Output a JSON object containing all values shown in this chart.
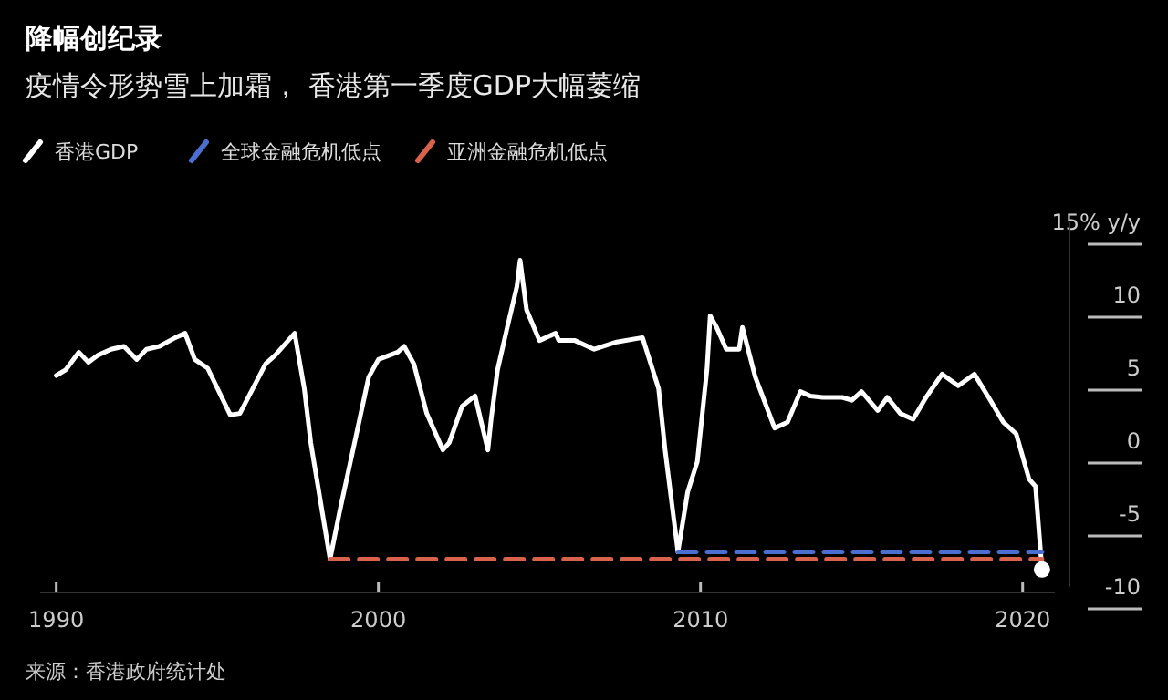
{
  "chart_data": {
    "type": "line",
    "title": "降幅创纪录",
    "subtitle": "疫情令形势雪上加霜， 香港第一季度GDP大幅萎缩",
    "annotations": [
      "来源：香港政府统计处"
    ],
    "xlim": [
      1989.5,
      2021
    ],
    "xticks": [
      1990,
      2000,
      2010,
      2020
    ],
    "ylim": [
      -10,
      15
    ],
    "yticks": [
      -10,
      -5,
      0,
      5,
      10,
      {
        "value": 15,
        "label": "15% y/y"
      }
    ],
    "legend": "top left",
    "grid": false,
    "line_style": "solid",
    "marker": "none",
    "series": [
      {
        "name": "香港GDP",
        "color": "#ffffff",
        "x": [
          1990.0,
          1990.3,
          1990.7,
          1991.0,
          1991.3,
          1991.7,
          1992.1,
          1992.5,
          1992.8,
          1993.2,
          1993.7,
          1994.0,
          1994.3,
          1994.7,
          1995.4,
          1995.7,
          1996.1,
          1996.5,
          1996.8,
          1997.2,
          1997.4,
          1997.7,
          1997.9,
          1998.5,
          1998.8,
          1999.3,
          1999.7,
          2000.0,
          2000.6,
          2000.8,
          2001.1,
          2001.5,
          2002.0,
          2002.2,
          2002.6,
          2003.0,
          2003.4,
          2003.5,
          2003.7,
          2004.0,
          2004.3,
          2004.4,
          2004.6,
          2005.0,
          2005.5,
          2005.6,
          2006.1,
          2006.7,
          2007.4,
          2008.2,
          2008.7,
          2008.9,
          2009.3,
          2009.6,
          2009.9,
          2010.2,
          2010.3,
          2010.5,
          2010.8,
          2011.2,
          2011.3,
          2011.7,
          2012.3,
          2012.7,
          2013.1,
          2013.4,
          2013.8,
          2014.4,
          2014.7,
          2015.0,
          2015.5,
          2015.8,
          2016.2,
          2016.6,
          2017.0,
          2017.5,
          2018.0,
          2018.5,
          2019.0,
          2019.4,
          2019.8,
          2020.2,
          2020.4,
          2020.6
        ],
        "values": [
          4.5,
          4.9,
          6.1,
          5.4,
          5.9,
          6.3,
          6.5,
          5.6,
          6.3,
          6.5,
          7.1,
          7.4,
          5.6,
          5.0,
          1.8,
          1.9,
          3.6,
          5.3,
          5.9,
          6.9,
          7.4,
          3.6,
          -0.1,
          -8.1,
          -4.8,
          0.3,
          4.4,
          5.6,
          6.1,
          6.5,
          5.3,
          1.9,
          -0.6,
          -0.1,
          2.4,
          3.1,
          -0.6,
          1.5,
          4.9,
          7.8,
          10.6,
          12.4,
          9.0,
          6.9,
          7.4,
          6.9,
          6.9,
          6.3,
          6.8,
          7.1,
          3.6,
          -0.6,
          -7.6,
          -3.5,
          -1.4,
          4.9,
          8.6,
          7.8,
          6.3,
          6.3,
          7.8,
          4.4,
          0.9,
          1.3,
          3.4,
          3.1,
          3.0,
          3.0,
          2.8,
          3.4,
          2.1,
          3.0,
          1.9,
          1.5,
          3.0,
          4.6,
          3.8,
          4.6,
          2.8,
          1.3,
          0.5,
          -2.6,
          -3.1,
          -8.8
        ]
      },
      {
        "name": "全球金融危机低点",
        "color": "#4a6fd0",
        "line_style": "dashed",
        "x": [
          2009.3,
          2020.6
        ],
        "values": [
          -7.6,
          -7.6
        ]
      },
      {
        "name": "亚洲金融危机低点",
        "color": "#d9624c",
        "line_style": "dashed",
        "x": [
          1998.5,
          2020.6
        ],
        "values": [
          -8.1,
          -8.1
        ]
      },
      {
        "type": "scatter",
        "marker": "circle",
        "color": "#ffffff",
        "x": [
          2020.6
        ],
        "values": [
          -8.8
        ]
      }
    ]
  }
}
